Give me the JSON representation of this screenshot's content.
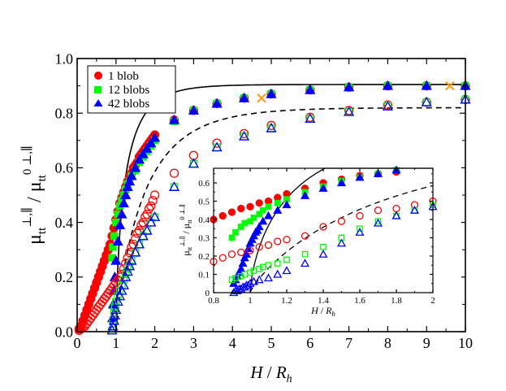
{
  "chart_data": [
    {
      "type": "scatter",
      "panel": "main",
      "xlabel": {
        "main": "H",
        "sep": " / ",
        "sub_base": "R",
        "sub": "h"
      },
      "ylabel": {
        "mu": "μ",
        "sub": "tt",
        "sup": "⊥,∥",
        "sep": " / ",
        "sup0": "0 ⊥,∥"
      },
      "xlim": [
        0,
        10
      ],
      "ylim": [
        0,
        1.0
      ],
      "xticks": [
        "0",
        "1",
        "2",
        "3",
        "4",
        "5",
        "6",
        "7",
        "8",
        "9",
        "10"
      ],
      "yticks": [
        "0.0",
        "0.2",
        "0.4",
        "0.6",
        "0.8",
        "1.0"
      ],
      "legend_position": "top-left",
      "legend": [
        {
          "label": "1 blob",
          "color": "#ff0000",
          "marker": "circle"
        },
        {
          "label": "12 blobs",
          "color": "#00ff00",
          "marker": "square"
        },
        {
          "label": "42 blobs",
          "color": "#0000ff",
          "marker": "triangle"
        }
      ],
      "series": [
        {
          "name": "1 blob parallel",
          "marker": "circle",
          "filled": true,
          "color": "#ff0000",
          "x": [
            0.05,
            0.1,
            0.15,
            0.2,
            0.25,
            0.3,
            0.35,
            0.4,
            0.45,
            0.5,
            0.55,
            0.6,
            0.65,
            0.7,
            0.75,
            0.8,
            0.85,
            0.9,
            0.95,
            1.0,
            1.05,
            1.1,
            1.15,
            1.2,
            1.25,
            1.3,
            1.35,
            1.4,
            1.45,
            1.5,
            1.55,
            1.6,
            1.65,
            1.7,
            1.75,
            1.8,
            1.85,
            1.9,
            1.95,
            2.0,
            2.5,
            3.0,
            3.6,
            4.3,
            5.0,
            6.0,
            7.0,
            8.0,
            9.0,
            10.0
          ],
          "y": [
            0.01,
            0.02,
            0.04,
            0.06,
            0.08,
            0.1,
            0.12,
            0.14,
            0.16,
            0.18,
            0.2,
            0.22,
            0.24,
            0.26,
            0.28,
            0.3,
            0.32,
            0.35,
            0.38,
            0.41,
            0.44,
            0.47,
            0.49,
            0.51,
            0.53,
            0.55,
            0.57,
            0.58,
            0.6,
            0.61,
            0.62,
            0.64,
            0.65,
            0.66,
            0.67,
            0.68,
            0.69,
            0.7,
            0.71,
            0.72,
            0.775,
            0.81,
            0.835,
            0.855,
            0.87,
            0.885,
            0.895,
            0.9,
            0.9,
            0.9
          ]
        },
        {
          "name": "12 blobs parallel",
          "marker": "square",
          "filled": true,
          "color": "#00ff00",
          "x": [
            0.9,
            0.92,
            0.95,
            1.0,
            1.05,
            1.1,
            1.15,
            1.2,
            1.25,
            1.3,
            1.35,
            1.4,
            1.5,
            1.6,
            1.7,
            1.8,
            1.9,
            2.0,
            2.5,
            3.0,
            3.6,
            4.3,
            5.0,
            6.0,
            7.0,
            8.0,
            9.0,
            10.0
          ],
          "y": [
            0.27,
            0.31,
            0.35,
            0.4,
            0.43,
            0.46,
            0.48,
            0.5,
            0.52,
            0.54,
            0.55,
            0.57,
            0.59,
            0.62,
            0.64,
            0.66,
            0.68,
            0.7,
            0.77,
            0.81,
            0.835,
            0.855,
            0.87,
            0.885,
            0.895,
            0.9,
            0.9,
            0.9
          ]
        },
        {
          "name": "42 blobs parallel",
          "marker": "triangle",
          "filled": true,
          "color": "#0000ff",
          "x": [
            0.91,
            0.93,
            0.95,
            0.97,
            1.0,
            1.05,
            1.1,
            1.15,
            1.2,
            1.25,
            1.3,
            1.35,
            1.4,
            1.5,
            1.6,
            1.7,
            1.8,
            1.9,
            2.0,
            2.5,
            3.0,
            3.6,
            4.3,
            5.0,
            6.0,
            7.0,
            8.0,
            9.0,
            10.0
          ],
          "y": [
            0.05,
            0.1,
            0.15,
            0.2,
            0.26,
            0.33,
            0.39,
            0.43,
            0.47,
            0.5,
            0.53,
            0.55,
            0.57,
            0.6,
            0.63,
            0.65,
            0.67,
            0.69,
            0.71,
            0.775,
            0.81,
            0.835,
            0.855,
            0.87,
            0.885,
            0.895,
            0.9,
            0.9,
            0.9
          ]
        },
        {
          "name": "1 blob perpendicular",
          "marker": "circle",
          "filled": false,
          "color": "#ff0000",
          "x": [
            0.05,
            0.1,
            0.15,
            0.2,
            0.25,
            0.3,
            0.35,
            0.4,
            0.45,
            0.5,
            0.55,
            0.6,
            0.65,
            0.7,
            0.75,
            0.8,
            0.85,
            0.9,
            0.95,
            1.0,
            1.05,
            1.1,
            1.15,
            1.2,
            1.25,
            1.3,
            1.35,
            1.4,
            1.45,
            1.5,
            1.55,
            1.6,
            1.65,
            1.7,
            1.75,
            1.8,
            1.85,
            1.9,
            1.95,
            2.0,
            2.5,
            3.0,
            3.6,
            4.3,
            5.0,
            6.0,
            7.0,
            8.0,
            9.0,
            10.0
          ],
          "y": [
            0.005,
            0.01,
            0.015,
            0.02,
            0.03,
            0.04,
            0.05,
            0.06,
            0.07,
            0.08,
            0.09,
            0.1,
            0.11,
            0.12,
            0.13,
            0.14,
            0.15,
            0.16,
            0.17,
            0.18,
            0.19,
            0.2,
            0.21,
            0.23,
            0.25,
            0.27,
            0.29,
            0.31,
            0.32,
            0.34,
            0.36,
            0.37,
            0.39,
            0.4,
            0.42,
            0.43,
            0.45,
            0.46,
            0.48,
            0.5,
            0.58,
            0.645,
            0.69,
            0.725,
            0.755,
            0.785,
            0.81,
            0.83,
            0.84,
            0.85
          ]
        },
        {
          "name": "12 blobs perpendicular",
          "marker": "square",
          "filled": false,
          "color": "#00ff00",
          "x": [
            0.9,
            0.92,
            0.95,
            0.97,
            1.0,
            1.05,
            1.1,
            1.15,
            1.2,
            1.25,
            1.3,
            1.35,
            1.4,
            1.5,
            1.6,
            1.7,
            1.8,
            1.9,
            2.0,
            2.5,
            3.0,
            3.6,
            4.3,
            5.0,
            6.0,
            7.0,
            8.0,
            9.0,
            10.0
          ],
          "y": [
            0.005,
            0.04,
            0.07,
            0.09,
            0.11,
            0.13,
            0.15,
            0.17,
            0.19,
            0.21,
            0.23,
            0.24,
            0.26,
            0.29,
            0.32,
            0.35,
            0.37,
            0.4,
            0.42,
            0.53,
            0.615,
            0.675,
            0.715,
            0.745,
            0.78,
            0.805,
            0.825,
            0.84,
            0.85
          ]
        },
        {
          "name": "42 blobs perpendicular",
          "marker": "triangle",
          "filled": false,
          "color": "#0000ff",
          "x": [
            0.9,
            0.92,
            0.95,
            0.97,
            1.0,
            1.05,
            1.1,
            1.15,
            1.2,
            1.25,
            1.3,
            1.35,
            1.4,
            1.5,
            1.6,
            1.7,
            1.8,
            1.9,
            2.0,
            2.5,
            3.0,
            3.6,
            4.3,
            5.0,
            6.0,
            7.0,
            8.0,
            9.0,
            10.0
          ],
          "y": [
            0.005,
            0.02,
            0.04,
            0.06,
            0.08,
            0.11,
            0.13,
            0.15,
            0.17,
            0.2,
            0.22,
            0.24,
            0.26,
            0.29,
            0.32,
            0.35,
            0.37,
            0.4,
            0.42,
            0.53,
            0.615,
            0.675,
            0.715,
            0.745,
            0.78,
            0.805,
            0.825,
            0.84,
            0.85
          ]
        },
        {
          "name": "special points",
          "marker": "cross",
          "filled": false,
          "color": "#ff9900",
          "x": [
            4.75,
            9.6
          ],
          "y": [
            0.855,
            0.9
          ]
        }
      ],
      "curves": [
        {
          "name": "theory parallel",
          "style": "solid",
          "x0": 1.0,
          "kind": "parallel"
        },
        {
          "name": "theory perpendicular",
          "style": "dashed",
          "x0": 1.0,
          "kind": "perpendicular"
        }
      ]
    },
    {
      "type": "scatter",
      "panel": "inset",
      "xlabel": {
        "main": "H",
        "sep": " / ",
        "sub_base": "R",
        "sub": "h"
      },
      "ylabel": {
        "mu": "μ",
        "sub": "tt",
        "sup": "⊥,∥",
        "sep": " / ",
        "sup0": "0 ⊥,∥"
      },
      "xlim": [
        0.8,
        2.0
      ],
      "ylim": [
        0,
        0.68
      ],
      "xticks": [
        "0.8",
        "1",
        "1.2",
        "1.4",
        "1.6",
        "1.8",
        "2"
      ],
      "yticks": [
        "0",
        "0.1",
        "0.2",
        "0.3",
        "0.4",
        "0.5",
        "0.6"
      ],
      "series": [
        {
          "name": "1 blob parallel",
          "marker": "circle",
          "filled": true,
          "color": "#ff0000",
          "x": [
            0.8,
            0.85,
            0.9,
            0.95,
            1.0,
            1.05,
            1.1,
            1.15,
            1.2,
            1.3,
            1.4,
            1.5,
            1.6,
            1.7,
            1.8
          ],
          "y": [
            0.4,
            0.42,
            0.44,
            0.46,
            0.47,
            0.49,
            0.5,
            0.52,
            0.54,
            0.57,
            0.6,
            0.62,
            0.64,
            0.65,
            0.66
          ]
        },
        {
          "name": "12 blobs parallel",
          "marker": "square",
          "filled": true,
          "color": "#00ff00",
          "x": [
            0.9,
            0.92,
            0.95,
            0.97,
            1.0,
            1.02,
            1.05,
            1.07,
            1.1,
            1.15,
            1.2,
            1.3,
            1.4,
            1.5,
            1.6,
            1.7,
            1.8
          ],
          "y": [
            0.3,
            0.33,
            0.36,
            0.38,
            0.39,
            0.41,
            0.43,
            0.45,
            0.47,
            0.49,
            0.51,
            0.55,
            0.58,
            0.61,
            0.63,
            0.65,
            0.67
          ]
        },
        {
          "name": "42 blobs parallel",
          "marker": "triangle",
          "filled": true,
          "color": "#0000ff",
          "x": [
            0.91,
            0.92,
            0.93,
            0.94,
            0.95,
            0.96,
            0.97,
            0.98,
            0.99,
            1.0,
            1.01,
            1.02,
            1.03,
            1.04,
            1.05,
            1.07,
            1.1,
            1.15,
            1.2,
            1.3,
            1.4,
            1.5,
            1.6,
            1.7,
            1.8
          ],
          "y": [
            0.05,
            0.07,
            0.09,
            0.11,
            0.13,
            0.16,
            0.19,
            0.21,
            0.24,
            0.27,
            0.29,
            0.31,
            0.33,
            0.34,
            0.36,
            0.39,
            0.42,
            0.45,
            0.48,
            0.53,
            0.57,
            0.6,
            0.63,
            0.65,
            0.67
          ]
        },
        {
          "name": "1 blob perpendicular",
          "marker": "circle",
          "filled": false,
          "color": "#ff0000",
          "x": [
            0.8,
            0.85,
            0.9,
            0.95,
            1.0,
            1.05,
            1.1,
            1.15,
            1.2,
            1.3,
            1.4,
            1.5,
            1.6,
            1.7,
            1.8,
            1.9,
            2.0
          ],
          "y": [
            0.17,
            0.19,
            0.21,
            0.22,
            0.23,
            0.25,
            0.26,
            0.28,
            0.29,
            0.31,
            0.36,
            0.39,
            0.42,
            0.45,
            0.46,
            0.48,
            0.5
          ]
        },
        {
          "name": "12 blobs perpendicular",
          "marker": "square",
          "filled": false,
          "color": "#00ff00",
          "x": [
            0.9,
            0.92,
            0.95,
            0.97,
            1.0,
            1.02,
            1.05,
            1.07,
            1.1,
            1.15,
            1.2,
            1.3,
            1.4,
            1.5,
            1.6,
            1.7,
            1.8,
            1.9,
            2.0
          ],
          "y": [
            0.07,
            0.08,
            0.09,
            0.1,
            0.11,
            0.12,
            0.13,
            0.14,
            0.15,
            0.16,
            0.18,
            0.21,
            0.25,
            0.3,
            0.35,
            0.39,
            0.42,
            0.45,
            0.48
          ]
        },
        {
          "name": "42 blobs perpendicular",
          "marker": "triangle",
          "filled": false,
          "color": "#0000ff",
          "x": [
            0.91,
            0.92,
            0.93,
            0.94,
            0.95,
            0.96,
            0.97,
            0.98,
            0.99,
            1.0,
            1.02,
            1.05,
            1.1,
            1.15,
            1.2,
            1.3,
            1.4,
            1.5,
            1.6,
            1.7,
            1.8,
            1.9,
            2.0
          ],
          "y": [
            0.0,
            0.01,
            0.01,
            0.02,
            0.02,
            0.03,
            0.03,
            0.04,
            0.04,
            0.05,
            0.06,
            0.07,
            0.08,
            0.1,
            0.12,
            0.16,
            0.21,
            0.27,
            0.33,
            0.38,
            0.42,
            0.45,
            0.47
          ]
        }
      ],
      "curves": [
        {
          "name": "theory parallel",
          "style": "solid",
          "x0": 1.0,
          "kind": "parallel"
        },
        {
          "name": "theory perpendicular",
          "style": "dashed",
          "x0": 1.0,
          "kind": "perpendicular"
        }
      ]
    }
  ]
}
